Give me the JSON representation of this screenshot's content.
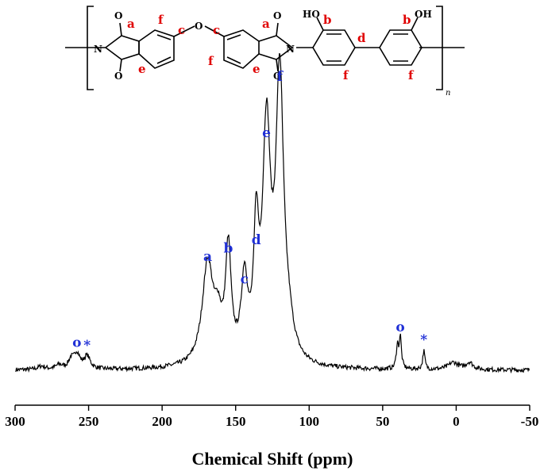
{
  "structure": {
    "atoms": {
      "o_top_left": "O",
      "n_left": "N",
      "o_bottom_left": "O",
      "ether_o": "O",
      "o_top_right": "O",
      "n_right": "N",
      "o_bottom_right": "O",
      "ho_left": "HO",
      "oh_right": "OH",
      "repeat_subscript": "n"
    },
    "sites": {
      "a_left": "a",
      "f_left": "f",
      "c_left": "c",
      "e_left": "e",
      "c_right": "c",
      "f_right": "f",
      "e_right": "e",
      "a_right": "a",
      "b_left": "b",
      "d": "d",
      "f_ring3": "f",
      "b_right": "b",
      "f_ring4": "f"
    },
    "site_color": "#e00000"
  },
  "chart_data": {
    "type": "line",
    "title": "",
    "xlabel": "Chemical Shift (ppm)",
    "ylabel": "",
    "xlim": [
      300,
      -50
    ],
    "x_reversed": true,
    "xticks": [
      300,
      250,
      200,
      150,
      100,
      50,
      0,
      -50
    ],
    "grid": false,
    "line_color": "#000000",
    "label_color": "#1f2fd6",
    "peaks": [
      {
        "label": "o",
        "x": 258,
        "height": 0.055
      },
      {
        "label": "*",
        "x": 251,
        "height": 0.045
      },
      {
        "label": "a",
        "x": 169,
        "height": 0.36
      },
      {
        "label": "b",
        "x": 155,
        "height": 0.39
      },
      {
        "label": "c",
        "x": 144,
        "height": 0.28
      },
      {
        "label": "d",
        "x": 136,
        "height": 0.42
      },
      {
        "label": "e",
        "x": 129,
        "height": 0.8
      },
      {
        "label": "f",
        "x": 120,
        "height": 1.0
      },
      {
        "label": "o",
        "x": 38,
        "height": 0.11
      },
      {
        "label": "*",
        "x": 22,
        "height": 0.065
      }
    ]
  }
}
